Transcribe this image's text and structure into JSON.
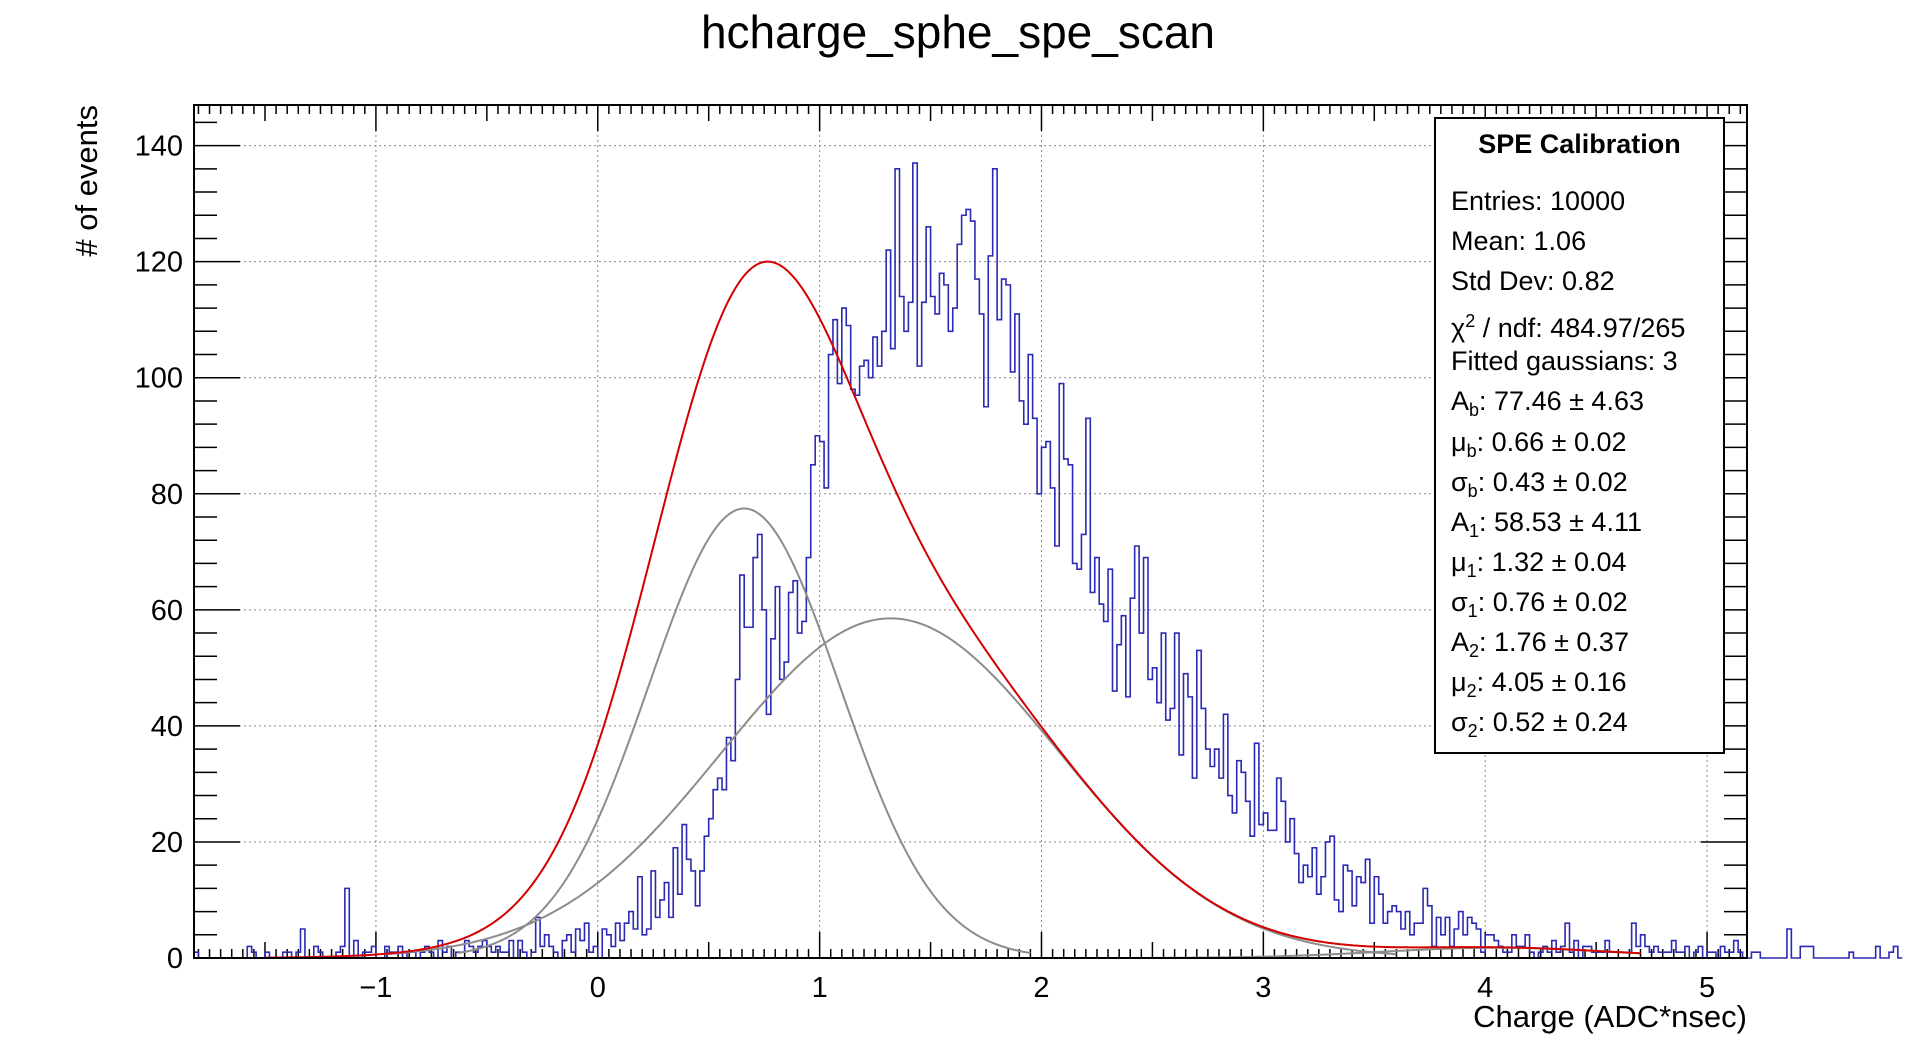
{
  "chart_data": {
    "type": "histogram",
    "title": "hcharge_sphe_spe_scan",
    "xlabel": "Charge (ADC*nsec)",
    "ylabel": "# of events",
    "xlim": [
      -1.82,
      5.18
    ],
    "ylim": [
      0,
      147
    ],
    "x_ticks": [
      -1,
      0,
      1,
      2,
      3,
      4,
      5
    ],
    "x_tick_labels": [
      "−1",
      "0",
      "1",
      "2",
      "3",
      "4",
      "5"
    ],
    "y_ticks": [
      0,
      20,
      40,
      60,
      80,
      100,
      120,
      140
    ],
    "y_tick_labels": [
      "0",
      "20",
      "40",
      "60",
      "80",
      "100",
      "120",
      "140"
    ],
    "grid": true,
    "histogram": {
      "name": "data",
      "color": "#2a2ab4",
      "bin_start": -1.82,
      "bin_width": 0.02,
      "counts": [
        1,
        0,
        0,
        0,
        0,
        0,
        0,
        0,
        0,
        0,
        0,
        0,
        2,
        1,
        0,
        0,
        1,
        0,
        0,
        0,
        1,
        1,
        0,
        1,
        5,
        0,
        0,
        2,
        1,
        0,
        0,
        0,
        1,
        2,
        12,
        0,
        3,
        0,
        1,
        1,
        2,
        0,
        0,
        2,
        1,
        1,
        2,
        0,
        1,
        1,
        0,
        1,
        2,
        1,
        0,
        3,
        1,
        2,
        0,
        1,
        1,
        3,
        2,
        1,
        2,
        3,
        2,
        1,
        2,
        1,
        1,
        3,
        0,
        3,
        1,
        0,
        1,
        7,
        2,
        4,
        2,
        1,
        0,
        3,
        4,
        1,
        5,
        3,
        6,
        1,
        2,
        0,
        5,
        4,
        2,
        6,
        3,
        6,
        8,
        5,
        14,
        4,
        5,
        15,
        7,
        10,
        13,
        7,
        19,
        11,
        23,
        17,
        15,
        9,
        15,
        21,
        24,
        29,
        31,
        29,
        38,
        34,
        48,
        66,
        57,
        57,
        69,
        73,
        60,
        42,
        55,
        64,
        48,
        51,
        63,
        65,
        56,
        58,
        69,
        85,
        90,
        89,
        81,
        104,
        110,
        99,
        112,
        109,
        98,
        97,
        102,
        103,
        100,
        107,
        102,
        108,
        122,
        105,
        136,
        114,
        108,
        113,
        137,
        102,
        113,
        126,
        114,
        111,
        118,
        116,
        108,
        112,
        123,
        128,
        129,
        127,
        117,
        111,
        95,
        121,
        136,
        110,
        117,
        116,
        101,
        111,
        96,
        92,
        104,
        93,
        80,
        88,
        89,
        81,
        71,
        99,
        86,
        85,
        68,
        67,
        73,
        93,
        63,
        69,
        61,
        58,
        67,
        46,
        54,
        59,
        45,
        62,
        71,
        56,
        69,
        48,
        50,
        44,
        56,
        41,
        43,
        56,
        35,
        49,
        45,
        31,
        53,
        43,
        36,
        33,
        36,
        31,
        42,
        28,
        25,
        34,
        32,
        27,
        21,
        37,
        23,
        25,
        22,
        22,
        31,
        27,
        20,
        24,
        18,
        13,
        16,
        14,
        19,
        11,
        14,
        20,
        21,
        10,
        8,
        16,
        15,
        9,
        14,
        13,
        17,
        6,
        14,
        11,
        6,
        8,
        9,
        8,
        5,
        8,
        4,
        6,
        6,
        12,
        9,
        2,
        7,
        4,
        7,
        2,
        5,
        8,
        4,
        7,
        6,
        5,
        1,
        4,
        4,
        3,
        2,
        1,
        1,
        4,
        2,
        2,
        4,
        1,
        0,
        1,
        2,
        1,
        3,
        1,
        2,
        6,
        1,
        3,
        0,
        2,
        2,
        1,
        1,
        1,
        3,
        1,
        1,
        1,
        1,
        1,
        6,
        2,
        4,
        2,
        1,
        2,
        1,
        1,
        1,
        3,
        1,
        1,
        2,
        0,
        1,
        2,
        0,
        1,
        1,
        0,
        2,
        1,
        1,
        3,
        1,
        0,
        0,
        1,
        1,
        0,
        0,
        0,
        0,
        0,
        0,
        5,
        0,
        0,
        2,
        2,
        2,
        0,
        0,
        0,
        0,
        0,
        0,
        0,
        0,
        1,
        0,
        0,
        0,
        0,
        0,
        2,
        0,
        0,
        1,
        2,
        0
      ]
    },
    "fit": {
      "name": "total fit",
      "color": "#d40000",
      "x_range": [
        -1.5,
        4.7
      ],
      "gaussians": [
        {
          "A": 77.46,
          "mu": 0.66,
          "sigma": 0.43,
          "color": "#8c8c8c"
        },
        {
          "A": 58.53,
          "mu": 1.32,
          "sigma": 0.76,
          "color": "#8c8c8c"
        },
        {
          "A": 1.76,
          "mu": 4.05,
          "sigma": 0.52,
          "color": "#8c8c8c"
        }
      ]
    }
  },
  "stats_box": {
    "title": "SPE Calibration",
    "lines": [
      {
        "pre": "Entries: 10000"
      },
      {
        "pre": "Mean: 1.06"
      },
      {
        "pre": "Std Dev: 0.82"
      },
      {
        "pre": "χ",
        "sup": "2",
        "post": " / ndf: 484.97/265"
      },
      {
        "pre": "Fitted gaussians: 3"
      },
      {
        "pre": "A",
        "sub": "b",
        "post": ": 77.46 ± 4.63"
      },
      {
        "pre": "μ",
        "sub": "b",
        "post": ": 0.66 ± 0.02"
      },
      {
        "pre": "σ",
        "sub": "b",
        "post": ": 0.43 ± 0.02"
      },
      {
        "pre": "A",
        "sub": "1",
        "post": ": 58.53 ± 4.11"
      },
      {
        "pre": "μ",
        "sub": "1",
        "post": ": 1.32 ± 0.04"
      },
      {
        "pre": "σ",
        "sub": "1",
        "post": ": 0.76 ± 0.02"
      },
      {
        "pre": "A",
        "sub": "2",
        "post": ": 1.76 ± 0.37"
      },
      {
        "pre": "μ",
        "sub": "2",
        "post": ": 4.05 ± 0.16"
      },
      {
        "pre": "σ",
        "sub": "2",
        "post": ": 0.52 ± 0.24"
      }
    ]
  }
}
